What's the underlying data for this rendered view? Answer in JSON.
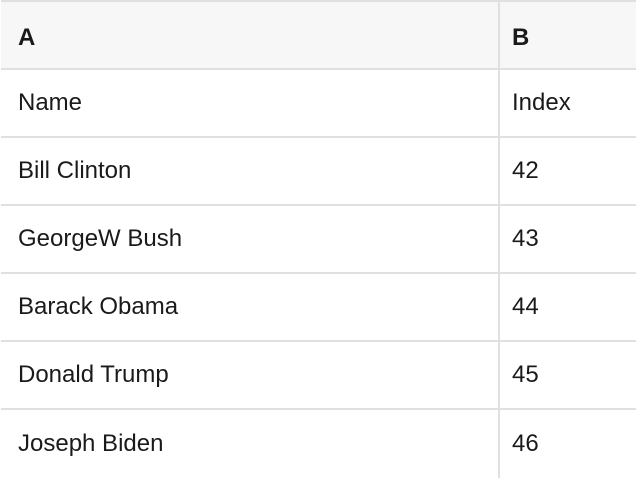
{
  "columns": [
    {
      "label": "A"
    },
    {
      "label": "B"
    }
  ],
  "rows": [
    {
      "a": "Name",
      "b": "Index"
    },
    {
      "a": "Bill Clinton",
      "b": "42"
    },
    {
      "a": "GeorgeW Bush",
      "b": "43"
    },
    {
      "a": "Barack Obama",
      "b": "44"
    },
    {
      "a": "Donald Trump",
      "b": "45"
    },
    {
      "a": "Joseph Biden",
      "b": "46"
    }
  ],
  "colors": {
    "header_bg": "#f7f7f7",
    "border": "#e0e0e0",
    "text": "#1a1a1a",
    "cell_bg": "#ffffff"
  }
}
